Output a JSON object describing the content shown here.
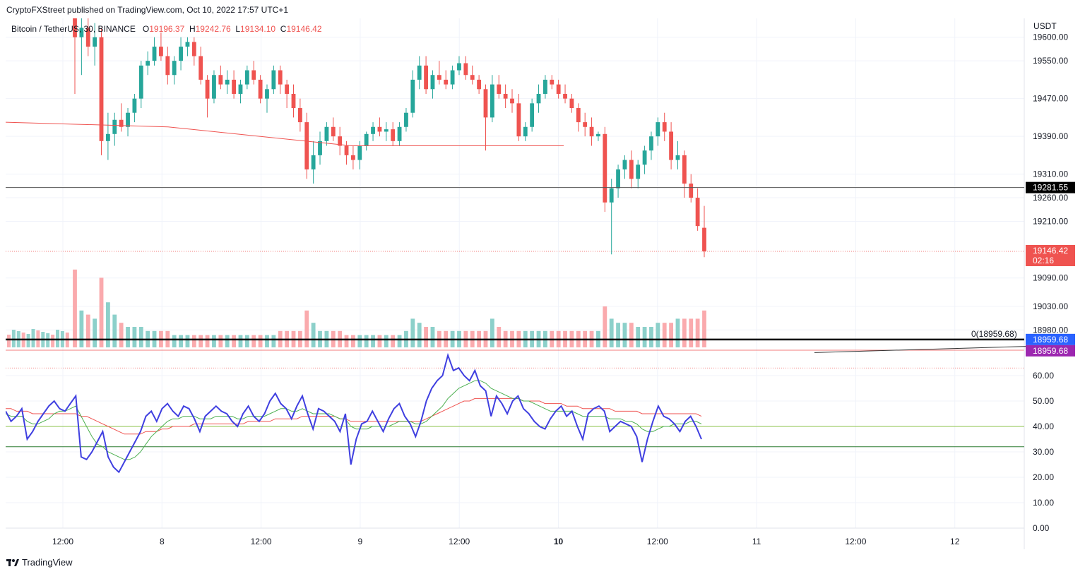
{
  "publisher_line": "CryptoFXStreet published on TradingView.com, Oct 10, 2022 17:57 UTC+1",
  "legend": {
    "symbol": "Bitcoin / TetherUS, 30, BINANCE",
    "o_label": "O",
    "o_value": "19196.37",
    "h_label": "H",
    "h_value": "19242.76",
    "l_label": "L",
    "l_value": "19134.10",
    "c_label": "C",
    "c_value": "19146.42"
  },
  "axis_currency": "USDT",
  "price_axis_ticks": [
    "19600.00",
    "19550.00",
    "19470.00",
    "19390.00",
    "19310.00",
    "19260.00",
    "19210.00",
    "19090.00",
    "19030.00",
    "18980.00"
  ],
  "rsi_axis_ticks": [
    "60.00",
    "50.00",
    "40.00",
    "30.00",
    "20.00",
    "10.00",
    "0.00"
  ],
  "time_axis_ticks": [
    "12:00",
    "8",
    "12:00",
    "9",
    "12:00",
    "10",
    "12:00",
    "11",
    "12:00",
    "12"
  ],
  "bold_time_tick": "10",
  "price_badges": {
    "resistance": "19281.55",
    "last_price": "19146.42",
    "countdown": "02:16",
    "fib_blue": "18959.68",
    "fib_purple": "18959.68"
  },
  "fib_label": "0(18959.68)",
  "footer_brand": "TradingView",
  "colors": {
    "up": "#26a69a",
    "down": "#ef5350",
    "rsi_line": "#3f3fe0",
    "rsi_signal": "#4caf50",
    "rsi_slow": "#ef5350",
    "badge_black": "#000000",
    "badge_blue": "#2962ff",
    "badge_purple": "#9c27b0"
  },
  "chart_data": {
    "type": "candlestick",
    "title": "Bitcoin / TetherUS, 30, BINANCE",
    "xlabel": "",
    "ylabel": "USDT",
    "ylim": [
      18940,
      19640
    ],
    "horizontal_levels": {
      "resistance": 19281.55,
      "last": 19146.42,
      "fib_0": 18959.68
    },
    "candles": [
      {
        "o": 19640,
        "h": 19660,
        "l": 19480,
        "c": 19600
      },
      {
        "o": 19600,
        "h": 19650,
        "l": 19520,
        "c": 19620
      },
      {
        "o": 19620,
        "h": 19640,
        "l": 19560,
        "c": 19580
      },
      {
        "o": 19580,
        "h": 19630,
        "l": 19540,
        "c": 19600
      },
      {
        "o": 19600,
        "h": 19620,
        "l": 19350,
        "c": 19380
      },
      {
        "o": 19380,
        "h": 19440,
        "l": 19340,
        "c": 19395
      },
      {
        "o": 19395,
        "h": 19440,
        "l": 19370,
        "c": 19425
      },
      {
        "o": 19425,
        "h": 19460,
        "l": 19400,
        "c": 19410
      },
      {
        "o": 19410,
        "h": 19450,
        "l": 19390,
        "c": 19440
      },
      {
        "o": 19440,
        "h": 19480,
        "l": 19420,
        "c": 19470
      },
      {
        "o": 19470,
        "h": 19550,
        "l": 19450,
        "c": 19540
      },
      {
        "o": 19540,
        "h": 19570,
        "l": 19520,
        "c": 19550
      },
      {
        "o": 19550,
        "h": 19600,
        "l": 19540,
        "c": 19580
      },
      {
        "o": 19580,
        "h": 19610,
        "l": 19550,
        "c": 19560
      },
      {
        "o": 19560,
        "h": 19580,
        "l": 19500,
        "c": 19520
      },
      {
        "o": 19520,
        "h": 19560,
        "l": 19500,
        "c": 19550
      },
      {
        "o": 19550,
        "h": 19600,
        "l": 19530,
        "c": 19580
      },
      {
        "o": 19580,
        "h": 19600,
        "l": 19560,
        "c": 19590
      },
      {
        "o": 19590,
        "h": 19600,
        "l": 19540,
        "c": 19560
      },
      {
        "o": 19560,
        "h": 19580,
        "l": 19500,
        "c": 19510
      },
      {
        "o": 19510,
        "h": 19520,
        "l": 19430,
        "c": 19470
      },
      {
        "o": 19470,
        "h": 19530,
        "l": 19460,
        "c": 19520
      },
      {
        "o": 19520,
        "h": 19540,
        "l": 19490,
        "c": 19500
      },
      {
        "o": 19500,
        "h": 19530,
        "l": 19480,
        "c": 19510
      },
      {
        "o": 19510,
        "h": 19530,
        "l": 19470,
        "c": 19480
      },
      {
        "o": 19480,
        "h": 19510,
        "l": 19460,
        "c": 19500
      },
      {
        "o": 19500,
        "h": 19540,
        "l": 19490,
        "c": 19530
      },
      {
        "o": 19530,
        "h": 19550,
        "l": 19500,
        "c": 19510
      },
      {
        "o": 19510,
        "h": 19520,
        "l": 19460,
        "c": 19470
      },
      {
        "o": 19470,
        "h": 19500,
        "l": 19440,
        "c": 19490
      },
      {
        "o": 19490,
        "h": 19540,
        "l": 19480,
        "c": 19530
      },
      {
        "o": 19530,
        "h": 19540,
        "l": 19480,
        "c": 19500
      },
      {
        "o": 19500,
        "h": 19510,
        "l": 19450,
        "c": 19480
      },
      {
        "o": 19480,
        "h": 19500,
        "l": 19430,
        "c": 19450
      },
      {
        "o": 19450,
        "h": 19470,
        "l": 19400,
        "c": 19420
      },
      {
        "o": 19420,
        "h": 19440,
        "l": 19300,
        "c": 19320
      },
      {
        "o": 19320,
        "h": 19380,
        "l": 19290,
        "c": 19350
      },
      {
        "o": 19350,
        "h": 19400,
        "l": 19330,
        "c": 19380
      },
      {
        "o": 19380,
        "h": 19420,
        "l": 19370,
        "c": 19410
      },
      {
        "o": 19410,
        "h": 19430,
        "l": 19380,
        "c": 19390
      },
      {
        "o": 19390,
        "h": 19410,
        "l": 19350,
        "c": 19370
      },
      {
        "o": 19370,
        "h": 19380,
        "l": 19330,
        "c": 19350
      },
      {
        "o": 19350,
        "h": 19370,
        "l": 19320,
        "c": 19340
      },
      {
        "o": 19340,
        "h": 19380,
        "l": 19320,
        "c": 19370
      },
      {
        "o": 19370,
        "h": 19400,
        "l": 19360,
        "c": 19395
      },
      {
        "o": 19395,
        "h": 19420,
        "l": 19380,
        "c": 19410
      },
      {
        "o": 19410,
        "h": 19430,
        "l": 19390,
        "c": 19400
      },
      {
        "o": 19400,
        "h": 19420,
        "l": 19380,
        "c": 19405
      },
      {
        "o": 19405,
        "h": 19420,
        "l": 19370,
        "c": 19380
      },
      {
        "o": 19380,
        "h": 19420,
        "l": 19370,
        "c": 19410
      },
      {
        "o": 19410,
        "h": 19450,
        "l": 19400,
        "c": 19440
      },
      {
        "o": 19440,
        "h": 19530,
        "l": 19430,
        "c": 19510
      },
      {
        "o": 19510,
        "h": 19560,
        "l": 19490,
        "c": 19540
      },
      {
        "o": 19540,
        "h": 19560,
        "l": 19480,
        "c": 19490
      },
      {
        "o": 19490,
        "h": 19530,
        "l": 19470,
        "c": 19520
      },
      {
        "o": 19520,
        "h": 19550,
        "l": 19500,
        "c": 19510
      },
      {
        "o": 19510,
        "h": 19530,
        "l": 19490,
        "c": 19500
      },
      {
        "o": 19500,
        "h": 19540,
        "l": 19490,
        "c": 19530
      },
      {
        "o": 19530,
        "h": 19560,
        "l": 19520,
        "c": 19545
      },
      {
        "o": 19545,
        "h": 19560,
        "l": 19510,
        "c": 19520
      },
      {
        "o": 19520,
        "h": 19540,
        "l": 19500,
        "c": 19510
      },
      {
        "o": 19510,
        "h": 19520,
        "l": 19480,
        "c": 19490
      },
      {
        "o": 19490,
        "h": 19500,
        "l": 19360,
        "c": 19430
      },
      {
        "o": 19430,
        "h": 19520,
        "l": 19420,
        "c": 19500
      },
      {
        "o": 19500,
        "h": 19520,
        "l": 19470,
        "c": 19480
      },
      {
        "o": 19480,
        "h": 19500,
        "l": 19450,
        "c": 19470
      },
      {
        "o": 19470,
        "h": 19490,
        "l": 19440,
        "c": 19460
      },
      {
        "o": 19460,
        "h": 19480,
        "l": 19380,
        "c": 19390
      },
      {
        "o": 19390,
        "h": 19420,
        "l": 19380,
        "c": 19410
      },
      {
        "o": 19410,
        "h": 19470,
        "l": 19400,
        "c": 19460
      },
      {
        "o": 19460,
        "h": 19500,
        "l": 19440,
        "c": 19480
      },
      {
        "o": 19480,
        "h": 19520,
        "l": 19470,
        "c": 19510
      },
      {
        "o": 19510,
        "h": 19520,
        "l": 19490,
        "c": 19500
      },
      {
        "o": 19500,
        "h": 19510,
        "l": 19470,
        "c": 19480
      },
      {
        "o": 19480,
        "h": 19500,
        "l": 19460,
        "c": 19470
      },
      {
        "o": 19470,
        "h": 19480,
        "l": 19440,
        "c": 19450
      },
      {
        "o": 19450,
        "h": 19460,
        "l": 19400,
        "c": 19420
      },
      {
        "o": 19420,
        "h": 19440,
        "l": 19390,
        "c": 19410
      },
      {
        "o": 19410,
        "h": 19430,
        "l": 19370,
        "c": 19390
      },
      {
        "o": 19390,
        "h": 19400,
        "l": 19380,
        "c": 19395
      },
      {
        "o": 19395,
        "h": 19410,
        "l": 19230,
        "c": 19250
      },
      {
        "o": 19250,
        "h": 19300,
        "l": 19140,
        "c": 19280
      },
      {
        "o": 19280,
        "h": 19330,
        "l": 19260,
        "c": 19320
      },
      {
        "o": 19320,
        "h": 19350,
        "l": 19300,
        "c": 19340
      },
      {
        "o": 19340,
        "h": 19360,
        "l": 19280,
        "c": 19300
      },
      {
        "o": 19300,
        "h": 19340,
        "l": 19280,
        "c": 19330
      },
      {
        "o": 19330,
        "h": 19370,
        "l": 19310,
        "c": 19360
      },
      {
        "o": 19360,
        "h": 19400,
        "l": 19340,
        "c": 19390
      },
      {
        "o": 19390,
        "h": 19430,
        "l": 19370,
        "c": 19420
      },
      {
        "o": 19420,
        "h": 19440,
        "l": 19380,
        "c": 19400
      },
      {
        "o": 19400,
        "h": 19420,
        "l": 19320,
        "c": 19340
      },
      {
        "o": 19340,
        "h": 19380,
        "l": 19320,
        "c": 19350
      },
      {
        "o": 19350,
        "h": 19360,
        "l": 19260,
        "c": 19290
      },
      {
        "o": 19290,
        "h": 19310,
        "l": 19250,
        "c": 19260
      },
      {
        "o": 19260,
        "h": 19280,
        "l": 19190,
        "c": 19200
      },
      {
        "o": 19196.37,
        "h": 19242.76,
        "l": 19134.1,
        "c": 19146.42
      }
    ],
    "volume": [
      0.95,
      0.45,
      0.4,
      0.35,
      0.85,
      0.55,
      0.4,
      0.3,
      0.25,
      0.25,
      0.25,
      0.2,
      0.2,
      0.2,
      0.2,
      0.15,
      0.15,
      0.15,
      0.15,
      0.15,
      0.15,
      0.15,
      0.15,
      0.15,
      0.15,
      0.15,
      0.15,
      0.15,
      0.15,
      0.15,
      0.15,
      0.2,
      0.2,
      0.2,
      0.2,
      0.45,
      0.3,
      0.2,
      0.2,
      0.2,
      0.2,
      0.15,
      0.15,
      0.15,
      0.15,
      0.15,
      0.15,
      0.15,
      0.15,
      0.15,
      0.2,
      0.35,
      0.3,
      0.25,
      0.25,
      0.2,
      0.2,
      0.2,
      0.2,
      0.2,
      0.2,
      0.2,
      0.2,
      0.35,
      0.25,
      0.2,
      0.2,
      0.2,
      0.2,
      0.2,
      0.2,
      0.2,
      0.2,
      0.2,
      0.2,
      0.2,
      0.2,
      0.2,
      0.2,
      0.2,
      0.5,
      0.35,
      0.3,
      0.3,
      0.3,
      0.25,
      0.25,
      0.25,
      0.3,
      0.3,
      0.3,
      0.35,
      0.35,
      0.35,
      0.35,
      0.45
    ],
    "rsi": {
      "ylim": [
        0,
        70
      ],
      "levels": [
        40,
        32
      ],
      "values": [
        46,
        42,
        44,
        47,
        35,
        38,
        42,
        45,
        48,
        50,
        47,
        46,
        49,
        52,
        28,
        27,
        30,
        34,
        38,
        28,
        24,
        22,
        26,
        30,
        34,
        38,
        44,
        46,
        42,
        47,
        49,
        46,
        44,
        48,
        47,
        43,
        38,
        44,
        46,
        48,
        46,
        45,
        42,
        40,
        45,
        48,
        44,
        42,
        45,
        50,
        53,
        49,
        47,
        43,
        48,
        52,
        45,
        39,
        47,
        46,
        44,
        42,
        38,
        45,
        25,
        35,
        41,
        42,
        46,
        42,
        38,
        43,
        47,
        49,
        44,
        41,
        36,
        42,
        50,
        55,
        58,
        60,
        68,
        62,
        63,
        60,
        58,
        62,
        56,
        54,
        44,
        52,
        49,
        45,
        50,
        52,
        47,
        45,
        42,
        40,
        39,
        43,
        46,
        48,
        44,
        46,
        40,
        35,
        45,
        47,
        48,
        46,
        38,
        40,
        42,
        41,
        40,
        36,
        26,
        35,
        42,
        48,
        44,
        43,
        41,
        38,
        42,
        44,
        40,
        35
      ],
      "signal": [
        45,
        44,
        44,
        44,
        42,
        41,
        41,
        42,
        43,
        45,
        46,
        46,
        47,
        48,
        44,
        40,
        36,
        33,
        32,
        30,
        29,
        28,
        27,
        27,
        28,
        30,
        33,
        36,
        38,
        40,
        42,
        43,
        43,
        44,
        44,
        44,
        43,
        43,
        43,
        44,
        44,
        44,
        44,
        43,
        43,
        44,
        44,
        44,
        44,
        45,
        46,
        47,
        47,
        46,
        46,
        47,
        46,
        45,
        45,
        45,
        45,
        44,
        43,
        43,
        40,
        39,
        39,
        39,
        40,
        40,
        40,
        40,
        41,
        42,
        42,
        42,
        41,
        41,
        42,
        44,
        46,
        48,
        51,
        53,
        55,
        56,
        57,
        58,
        58,
        57,
        55,
        54,
        53,
        52,
        51,
        51,
        50,
        50,
        49,
        48,
        47,
        46,
        46,
        46,
        46,
        46,
        45,
        44,
        44,
        44,
        44,
        44,
        43,
        43,
        43,
        42,
        42,
        41,
        39,
        38,
        38,
        39,
        40,
        40,
        41,
        41,
        41,
        42,
        42,
        41
      ],
      "slow": [
        47,
        47,
        46,
        46,
        46,
        45,
        45,
        45,
        45,
        45,
        45,
        45,
        45,
        45,
        44,
        44,
        43,
        42,
        41,
        40,
        39,
        38,
        37,
        37,
        37,
        37,
        38,
        38,
        38,
        39,
        39,
        40,
        40,
        40,
        40,
        41,
        41,
        41,
        41,
        41,
        41,
        41,
        41,
        41,
        41,
        42,
        42,
        42,
        42,
        42,
        43,
        43,
        43,
        43,
        43,
        44,
        44,
        44,
        44,
        44,
        44,
        44,
        43,
        43,
        42,
        42,
        42,
        42,
        42,
        42,
        42,
        42,
        42,
        42,
        42,
        42,
        42,
        42,
        43,
        44,
        45,
        46,
        47,
        48,
        49,
        50,
        50,
        51,
        51,
        51,
        51,
        51,
        51,
        51,
        51,
        51,
        50,
        50,
        50,
        50,
        49,
        49,
        49,
        49,
        48,
        48,
        48,
        47,
        47,
        47,
        47,
        47,
        47,
        46,
        46,
        46,
        46,
        46,
        45,
        45,
        45,
        45,
        45,
        45,
        45,
        45,
        45,
        45,
        45,
        44
      ]
    }
  }
}
